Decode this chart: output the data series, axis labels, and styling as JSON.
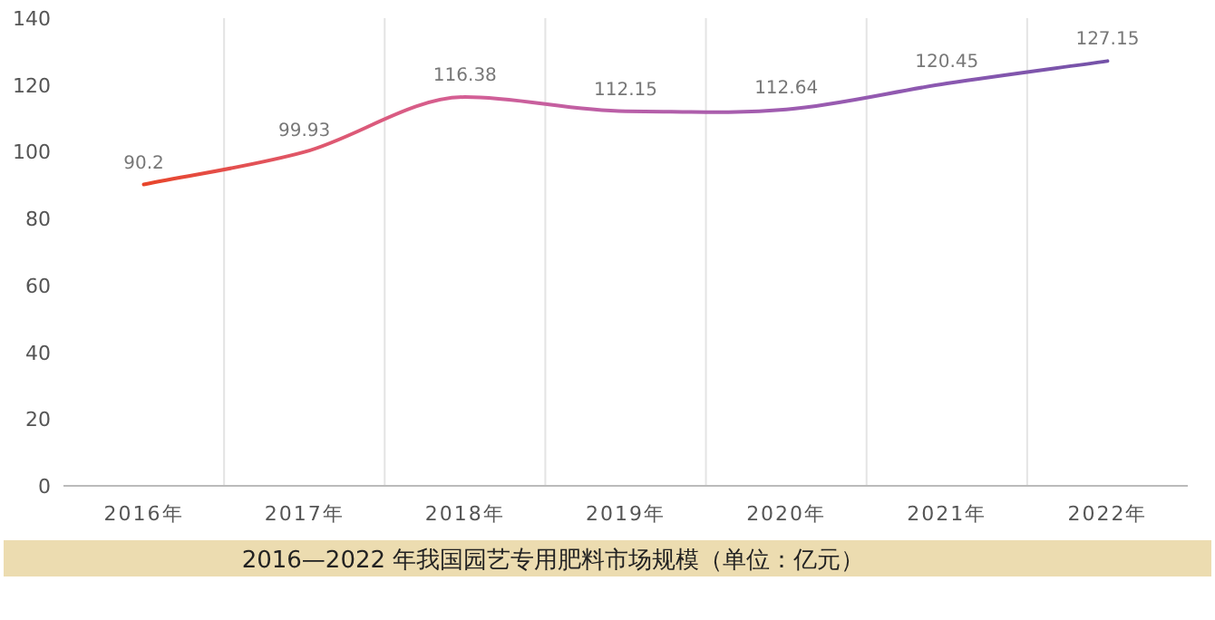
{
  "chart_data": {
    "type": "line",
    "title": "2016—2022 年我国园艺专用肥料市场规模（单位：亿元）",
    "categories": [
      "2016年",
      "2017年",
      "2018年",
      "2019年",
      "2020年",
      "2021年",
      "2022年"
    ],
    "series": [
      {
        "values": [
          90.2,
          99.93,
          116.38,
          112.15,
          112.64,
          120.45,
          127.15
        ],
        "colors": [
          "#e8452a",
          "#e0576a",
          "#d45f95",
          "#b95fa8",
          "#9e5cb0",
          "#8a58b0",
          "#7452a8"
        ]
      }
    ],
    "ylim": [
      0,
      140
    ],
    "yticks": [
      0,
      20,
      40,
      60,
      80,
      100,
      120,
      140
    ],
    "grid": "x",
    "data_labels": true,
    "marker": "none",
    "line_style": "solid"
  }
}
